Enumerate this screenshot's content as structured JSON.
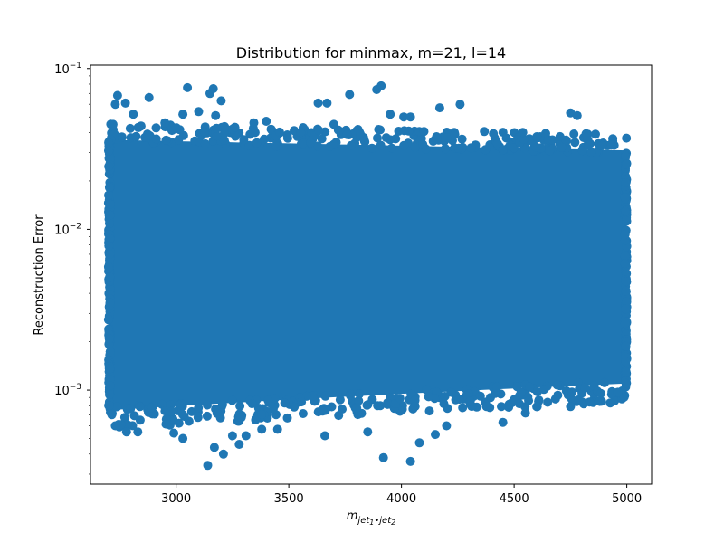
{
  "chart_data": {
    "type": "scatter",
    "title": "Distribution for minmax, m=21, l=14",
    "xlabel": "m_{jet_1 • jet_2}",
    "xlabel_parts": {
      "base": "m",
      "sub1": "jet",
      "sub1sub": "1",
      "dot": "•",
      "sub2": "jet",
      "sub2sub": "2"
    },
    "ylabel": "Reconstruction Error",
    "xlim": [
      2620,
      5110
    ],
    "ylim": [
      0.00026,
      0.105
    ],
    "yscale": "log",
    "grid": false,
    "color": "#1f77b4",
    "x_ticks": [
      {
        "value": 3000,
        "label": "3000"
      },
      {
        "value": 3500,
        "label": "3500"
      },
      {
        "value": 4000,
        "label": "4000"
      },
      {
        "value": 4500,
        "label": "4500"
      },
      {
        "value": 5000,
        "label": "5000"
      }
    ],
    "y_ticks": [
      {
        "value": 0.001,
        "base": "10",
        "exp": "−3"
      },
      {
        "value": 0.01,
        "base": "10",
        "exp": "−2"
      },
      {
        "value": 0.1,
        "base": "10",
        "exp": "−1"
      }
    ],
    "dense_band": {
      "x_range": [
        2700,
        5000
      ],
      "y_min_start": 0.00075,
      "y_min_end": 0.0011,
      "y_max_start": 0.036,
      "y_max_end": 0.031
    },
    "series": [
      {
        "values": [
          {
            "x": 2720,
            "y": 0.045
          },
          {
            "x": 2730,
            "y": 0.06
          },
          {
            "x": 2740,
            "y": 0.068
          },
          {
            "x": 2775,
            "y": 0.061
          },
          {
            "x": 2810,
            "y": 0.052
          },
          {
            "x": 2880,
            "y": 0.066
          },
          {
            "x": 2950,
            "y": 0.046
          },
          {
            "x": 3030,
            "y": 0.052
          },
          {
            "x": 3050,
            "y": 0.076
          },
          {
            "x": 3100,
            "y": 0.054
          },
          {
            "x": 3150,
            "y": 0.07
          },
          {
            "x": 3165,
            "y": 0.075
          },
          {
            "x": 3175,
            "y": 0.051
          },
          {
            "x": 3200,
            "y": 0.063
          },
          {
            "x": 3345,
            "y": 0.046
          },
          {
            "x": 3400,
            "y": 0.047
          },
          {
            "x": 3630,
            "y": 0.061
          },
          {
            "x": 3670,
            "y": 0.061
          },
          {
            "x": 3700,
            "y": 0.045
          },
          {
            "x": 3770,
            "y": 0.069
          },
          {
            "x": 3890,
            "y": 0.074
          },
          {
            "x": 3910,
            "y": 0.078
          },
          {
            "x": 3950,
            "y": 0.052
          },
          {
            "x": 4010,
            "y": 0.05
          },
          {
            "x": 4040,
            "y": 0.05
          },
          {
            "x": 4170,
            "y": 0.057
          },
          {
            "x": 4260,
            "y": 0.06
          },
          {
            "x": 4750,
            "y": 0.053
          },
          {
            "x": 4780,
            "y": 0.051
          },
          {
            "x": 2730,
            "y": 0.0006
          },
          {
            "x": 2780,
            "y": 0.00055
          },
          {
            "x": 2830,
            "y": 0.00055
          },
          {
            "x": 2990,
            "y": 0.00054
          },
          {
            "x": 3030,
            "y": 0.0005
          },
          {
            "x": 3140,
            "y": 0.00034
          },
          {
            "x": 3170,
            "y": 0.00044
          },
          {
            "x": 3210,
            "y": 0.0004
          },
          {
            "x": 3250,
            "y": 0.00052
          },
          {
            "x": 3280,
            "y": 0.00046
          },
          {
            "x": 3310,
            "y": 0.00052
          },
          {
            "x": 3380,
            "y": 0.00057
          },
          {
            "x": 3450,
            "y": 0.00057
          },
          {
            "x": 3660,
            "y": 0.00052
          },
          {
            "x": 3850,
            "y": 0.00055
          },
          {
            "x": 3920,
            "y": 0.00038
          },
          {
            "x": 4040,
            "y": 0.00036
          },
          {
            "x": 4080,
            "y": 0.00047
          },
          {
            "x": 4150,
            "y": 0.00053
          },
          {
            "x": 4200,
            "y": 0.0006
          },
          {
            "x": 4450,
            "y": 0.00063
          },
          {
            "x": 4550,
            "y": 0.00072
          },
          {
            "x": 4750,
            "y": 0.00079
          },
          {
            "x": 4880,
            "y": 0.00085
          },
          {
            "x": 4960,
            "y": 0.00097
          }
        ]
      }
    ]
  }
}
